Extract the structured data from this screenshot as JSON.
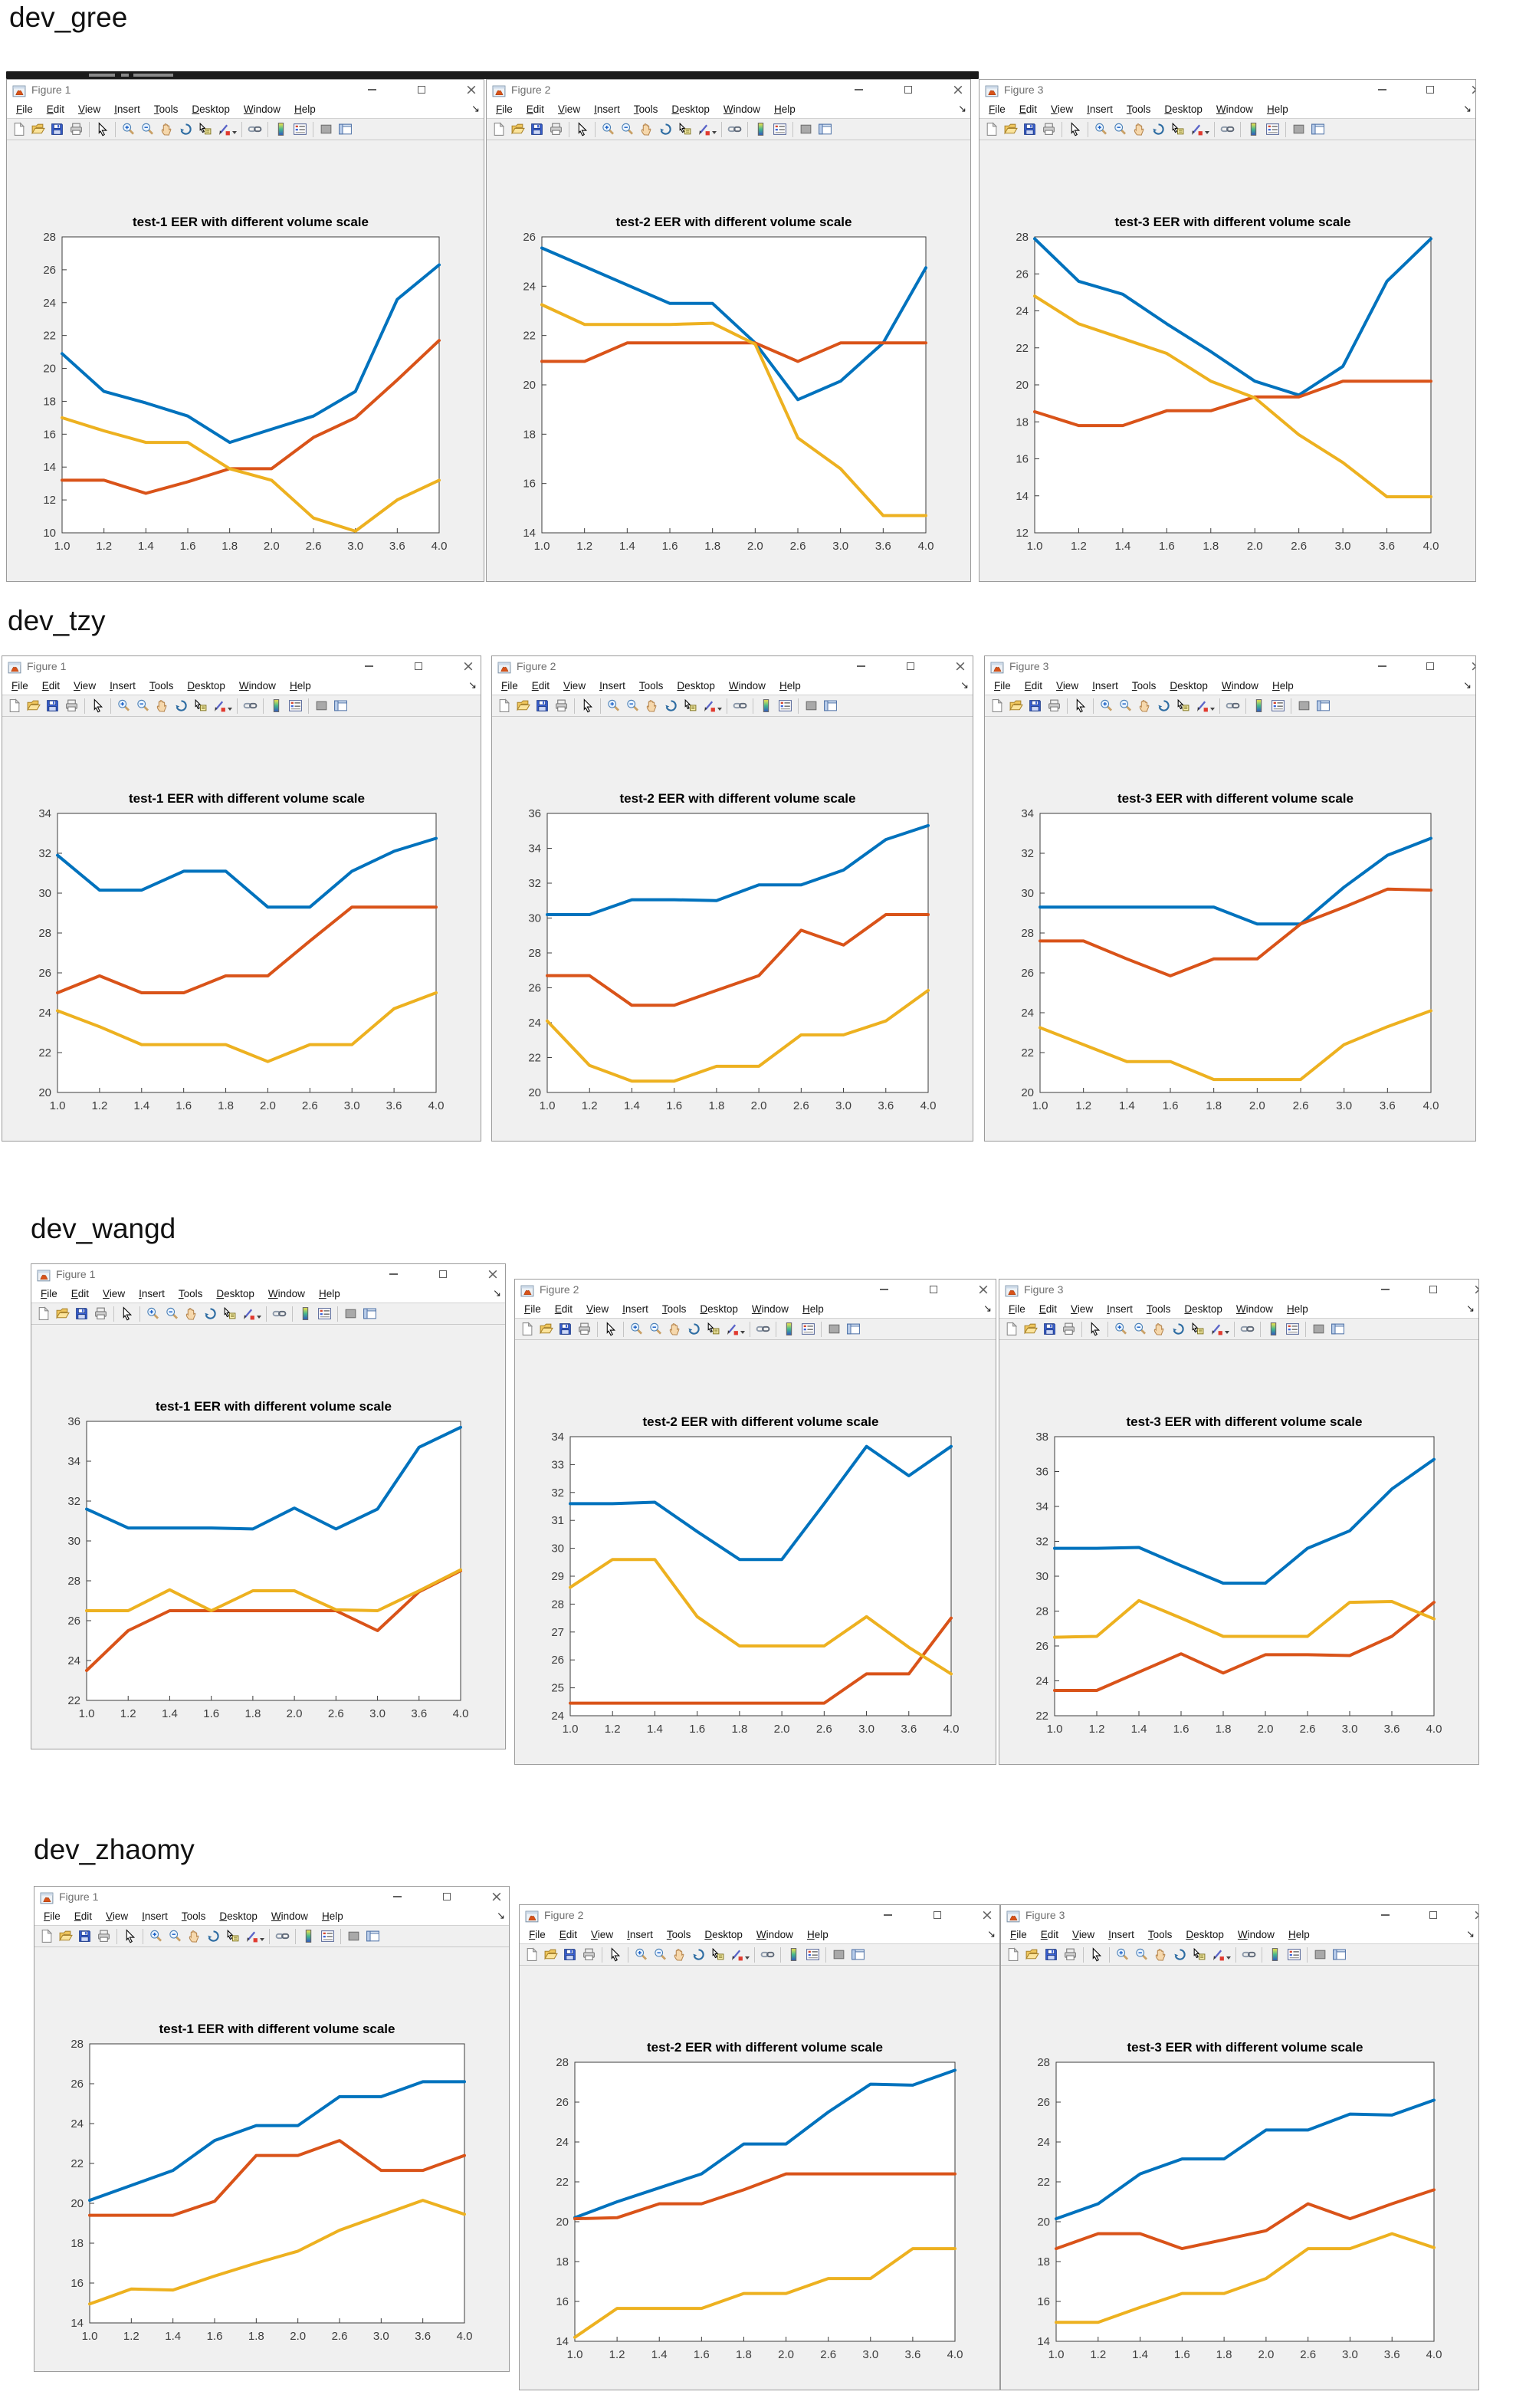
{
  "menu": [
    "File",
    "Edit",
    "View",
    "Insert",
    "Tools",
    "Desktop",
    "Window",
    "Help"
  ],
  "window_controls": {
    "minimize": "minimize",
    "maximize": "maximize",
    "close": "close"
  },
  "toolbar_icon_names": [
    "new-document",
    "open-file",
    "save",
    "print",
    "cursor",
    "zoom-in",
    "zoom-out",
    "pan-hand",
    "rotate-3d",
    "data-cursor",
    "brush",
    "link-plots",
    "insert-colorbar",
    "insert-legend",
    "hide-plot-tools",
    "show-plot-tools"
  ],
  "colors": {
    "blue": "#0072BD",
    "orange": "#D95319",
    "yellow": "#EDB120",
    "figure_bg": "#F0F0F0",
    "titlebar_bg": "#FFFFFF",
    "axis": "#3C3C3C",
    "title_text": "#6F6F6F"
  },
  "sections": [
    {
      "label": "dev_gree",
      "windows": [
        {
          "title": "Figure 1",
          "chart_index": 0
        },
        {
          "title": "Figure 2",
          "chart_index": 1
        },
        {
          "title": "Figure 3",
          "chart_index": 2
        }
      ]
    },
    {
      "label": "dev_tzy",
      "windows": [
        {
          "title": "Figure 1",
          "chart_index": 3
        },
        {
          "title": "Figure 2",
          "chart_index": 4
        },
        {
          "title": "Figure 3",
          "chart_index": 5
        }
      ]
    },
    {
      "label": "dev_wangd",
      "windows": [
        {
          "title": "Figure 1",
          "chart_index": 6
        },
        {
          "title": "Figure 2",
          "chart_index": 7
        },
        {
          "title": "Figure 3",
          "chart_index": 8
        }
      ]
    },
    {
      "label": "dev_zhaomy",
      "windows": [
        {
          "title": "Figure 1",
          "chart_index": 9
        },
        {
          "title": "Figure 2",
          "chart_index": 10
        },
        {
          "title": "Figure 3",
          "chart_index": 11
        }
      ]
    }
  ],
  "chart_data": [
    {
      "type": "line",
      "section": "dev_gree",
      "title": "test-1 EER with different volume scale",
      "x_ticks": [
        "1.0",
        "1.2",
        "1.4",
        "1.6",
        "1.8",
        "2.0",
        "2.6",
        "3.0",
        "3.6",
        "4.0"
      ],
      "ylim": [
        10,
        28
      ],
      "y_ticks": [
        "10",
        "12",
        "14",
        "16",
        "18",
        "20",
        "22",
        "24",
        "26",
        "28"
      ],
      "series": [
        {
          "name": "blue",
          "values": [
            20.9,
            18.6,
            17.9,
            17.1,
            15.5,
            16.3,
            17.1,
            18.6,
            24.2,
            26.3
          ]
        },
        {
          "name": "orange",
          "values": [
            13.2,
            13.2,
            12.4,
            13.1,
            13.9,
            13.9,
            15.8,
            17.0,
            19.3,
            21.7
          ]
        },
        {
          "name": "yellow",
          "values": [
            17.0,
            16.2,
            15.5,
            15.5,
            13.9,
            13.2,
            10.9,
            10.1,
            12.0,
            13.2
          ]
        }
      ]
    },
    {
      "type": "line",
      "section": "dev_gree",
      "title": "test-2 EER with different volume scale",
      "x_ticks": [
        "1.0",
        "1.2",
        "1.4",
        "1.6",
        "1.8",
        "2.0",
        "2.6",
        "3.0",
        "3.6",
        "4.0"
      ],
      "ylim": [
        14,
        26
      ],
      "y_ticks": [
        "14",
        "16",
        "18",
        "20",
        "22",
        "24",
        "26"
      ],
      "series": [
        {
          "name": "blue",
          "values": [
            25.55,
            24.8,
            24.05,
            23.3,
            23.3,
            21.7,
            19.4,
            20.15,
            21.7,
            24.75
          ]
        },
        {
          "name": "orange",
          "values": [
            20.95,
            20.95,
            21.7,
            21.7,
            21.7,
            21.7,
            20.95,
            21.7,
            21.7,
            21.7
          ]
        },
        {
          "name": "yellow",
          "values": [
            23.25,
            22.45,
            22.45,
            22.45,
            22.5,
            21.65,
            17.85,
            16.6,
            14.7,
            14.7
          ]
        }
      ]
    },
    {
      "type": "line",
      "section": "dev_gree",
      "title": "test-3 EER with different volume scale",
      "x_ticks": [
        "1.0",
        "1.2",
        "1.4",
        "1.6",
        "1.8",
        "2.0",
        "2.6",
        "3.0",
        "3.6",
        "4.0"
      ],
      "ylim": [
        12,
        28
      ],
      "y_ticks": [
        "12",
        "14",
        "16",
        "18",
        "20",
        "22",
        "24",
        "26",
        "28"
      ],
      "series": [
        {
          "name": "blue",
          "values": [
            27.9,
            25.6,
            24.9,
            23.3,
            21.8,
            20.2,
            19.45,
            21.0,
            25.6,
            27.9
          ]
        },
        {
          "name": "orange",
          "values": [
            18.55,
            17.8,
            17.8,
            18.6,
            18.6,
            19.35,
            19.35,
            20.2,
            20.2,
            20.2
          ]
        },
        {
          "name": "yellow",
          "values": [
            24.8,
            23.3,
            22.5,
            21.7,
            20.2,
            19.3,
            17.3,
            15.8,
            13.95,
            13.95
          ]
        }
      ]
    },
    {
      "type": "line",
      "section": "dev_tzy",
      "title": "test-1 EER with different volume scale",
      "x_ticks": [
        "1.0",
        "1.2",
        "1.4",
        "1.6",
        "1.8",
        "2.0",
        "2.6",
        "3.0",
        "3.6",
        "4.0"
      ],
      "ylim": [
        20,
        34
      ],
      "y_ticks": [
        "20",
        "22",
        "24",
        "26",
        "28",
        "30",
        "32",
        "34"
      ],
      "series": [
        {
          "name": "blue",
          "values": [
            31.9,
            30.15,
            30.15,
            31.1,
            31.1,
            29.3,
            29.3,
            31.1,
            32.1,
            32.75
          ]
        },
        {
          "name": "orange",
          "values": [
            25.0,
            25.85,
            25.0,
            25.0,
            25.85,
            25.85,
            27.6,
            29.3,
            29.3,
            29.3
          ]
        },
        {
          "name": "yellow",
          "values": [
            24.1,
            23.3,
            22.4,
            22.4,
            22.4,
            21.55,
            22.4,
            22.4,
            24.2,
            25.0
          ]
        }
      ]
    },
    {
      "type": "line",
      "section": "dev_tzy",
      "title": "test-2 EER with different volume scale",
      "x_ticks": [
        "1.0",
        "1.2",
        "1.4",
        "1.6",
        "1.8",
        "2.0",
        "2.6",
        "3.0",
        "3.6",
        "4.0"
      ],
      "ylim": [
        20,
        36
      ],
      "y_ticks": [
        "20",
        "22",
        "24",
        "26",
        "28",
        "30",
        "32",
        "34",
        "36"
      ],
      "series": [
        {
          "name": "blue",
          "values": [
            30.2,
            30.2,
            31.05,
            31.05,
            31.0,
            31.9,
            31.9,
            32.75,
            34.5,
            35.3
          ]
        },
        {
          "name": "orange",
          "values": [
            26.7,
            26.7,
            25.0,
            25.0,
            25.85,
            26.7,
            29.3,
            28.45,
            30.2,
            30.2
          ]
        },
        {
          "name": "yellow",
          "values": [
            24.1,
            21.55,
            20.65,
            20.65,
            21.5,
            21.5,
            23.3,
            23.3,
            24.1,
            25.85
          ]
        }
      ]
    },
    {
      "type": "line",
      "section": "dev_tzy",
      "title": "test-3 EER with different volume scale",
      "x_ticks": [
        "1.0",
        "1.2",
        "1.4",
        "1.6",
        "1.8",
        "2.0",
        "2.6",
        "3.0",
        "3.6",
        "4.0"
      ],
      "ylim": [
        20,
        34
      ],
      "y_ticks": [
        "20",
        "22",
        "24",
        "26",
        "28",
        "30",
        "32",
        "34"
      ],
      "series": [
        {
          "name": "blue",
          "values": [
            29.3,
            29.3,
            29.3,
            29.3,
            29.3,
            28.45,
            28.45,
            30.3,
            31.9,
            32.75
          ]
        },
        {
          "name": "orange",
          "values": [
            27.6,
            27.6,
            26.7,
            25.85,
            26.7,
            26.7,
            28.45,
            29.3,
            30.2,
            30.15
          ]
        },
        {
          "name": "yellow",
          "values": [
            23.25,
            22.4,
            21.55,
            21.55,
            20.65,
            20.65,
            20.65,
            22.4,
            23.3,
            24.1
          ]
        }
      ]
    },
    {
      "type": "line",
      "section": "dev_wangd",
      "title": "test-1 EER with different volume scale",
      "x_ticks": [
        "1.0",
        "1.2",
        "1.4",
        "1.6",
        "1.8",
        "2.0",
        "2.6",
        "3.0",
        "3.6",
        "4.0"
      ],
      "ylim": [
        22,
        36
      ],
      "y_ticks": [
        "22",
        "24",
        "26",
        "28",
        "30",
        "32",
        "34",
        "36"
      ],
      "series": [
        {
          "name": "blue",
          "values": [
            31.6,
            30.65,
            30.65,
            30.65,
            30.6,
            31.65,
            30.6,
            31.6,
            34.7,
            35.7
          ]
        },
        {
          "name": "orange",
          "values": [
            23.5,
            25.5,
            26.5,
            26.5,
            26.5,
            26.5,
            26.5,
            25.5,
            27.45,
            28.5
          ]
        },
        {
          "name": "yellow",
          "values": [
            26.5,
            26.5,
            27.55,
            26.5,
            27.5,
            27.5,
            26.55,
            26.5,
            27.5,
            28.55
          ]
        }
      ]
    },
    {
      "type": "line",
      "section": "dev_wangd",
      "title": "test-2 EER with different volume scale",
      "x_ticks": [
        "1.0",
        "1.2",
        "1.4",
        "1.6",
        "1.8",
        "2.0",
        "2.6",
        "3.0",
        "3.6",
        "4.0"
      ],
      "ylim": [
        24,
        34
      ],
      "y_ticks": [
        "24",
        "25",
        "26",
        "27",
        "28",
        "29",
        "30",
        "31",
        "32",
        "33",
        "34"
      ],
      "series": [
        {
          "name": "blue",
          "values": [
            31.6,
            31.6,
            31.65,
            30.6,
            29.6,
            29.6,
            31.6,
            33.65,
            32.6,
            33.65
          ]
        },
        {
          "name": "orange",
          "values": [
            24.45,
            24.45,
            24.45,
            24.45,
            24.45,
            24.45,
            24.45,
            25.5,
            25.5,
            27.5
          ]
        },
        {
          "name": "yellow",
          "values": [
            28.6,
            29.6,
            29.6,
            27.55,
            26.5,
            26.5,
            26.5,
            27.55,
            26.45,
            25.5
          ]
        }
      ]
    },
    {
      "type": "line",
      "section": "dev_wangd",
      "title": "test-3 EER with different volume scale",
      "x_ticks": [
        "1.0",
        "1.2",
        "1.4",
        "1.6",
        "1.8",
        "2.0",
        "2.6",
        "3.0",
        "3.6",
        "4.0"
      ],
      "ylim": [
        22,
        38
      ],
      "y_ticks": [
        "22",
        "24",
        "26",
        "28",
        "30",
        "32",
        "34",
        "36",
        "38"
      ],
      "series": [
        {
          "name": "blue",
          "values": [
            31.6,
            31.6,
            31.65,
            30.6,
            29.6,
            29.6,
            31.6,
            32.6,
            35.0,
            36.7
          ]
        },
        {
          "name": "orange",
          "values": [
            23.45,
            23.45,
            24.5,
            25.55,
            24.45,
            25.5,
            25.5,
            25.45,
            26.55,
            28.5
          ]
        },
        {
          "name": "yellow",
          "values": [
            26.5,
            26.55,
            28.6,
            27.6,
            26.55,
            26.55,
            26.55,
            28.5,
            28.55,
            27.55
          ]
        }
      ]
    },
    {
      "type": "line",
      "section": "dev_zhaomy",
      "title": "test-1 EER with different volume scale",
      "x_ticks": [
        "1.0",
        "1.2",
        "1.4",
        "1.6",
        "1.8",
        "2.0",
        "2.6",
        "3.0",
        "3.6",
        "4.0"
      ],
      "ylim": [
        14,
        28
      ],
      "y_ticks": [
        "14",
        "16",
        "18",
        "20",
        "22",
        "24",
        "26",
        "28"
      ],
      "series": [
        {
          "name": "blue",
          "values": [
            20.15,
            20.9,
            21.65,
            23.15,
            23.9,
            23.9,
            25.35,
            25.35,
            26.1,
            26.1
          ]
        },
        {
          "name": "orange",
          "values": [
            19.4,
            19.4,
            19.4,
            20.1,
            22.4,
            22.4,
            23.15,
            21.65,
            21.65,
            22.4
          ]
        },
        {
          "name": "yellow",
          "values": [
            14.95,
            15.7,
            15.65,
            16.35,
            17.0,
            17.6,
            18.65,
            19.4,
            20.15,
            19.45
          ]
        }
      ]
    },
    {
      "type": "line",
      "section": "dev_zhaomy",
      "title": "test-2 EER with different volume scale",
      "x_ticks": [
        "1.0",
        "1.2",
        "1.4",
        "1.6",
        "1.8",
        "2.0",
        "2.6",
        "3.0",
        "3.6",
        "4.0"
      ],
      "ylim": [
        14,
        28
      ],
      "y_ticks": [
        "14",
        "16",
        "18",
        "20",
        "22",
        "24",
        "26",
        "28"
      ],
      "series": [
        {
          "name": "blue",
          "values": [
            20.2,
            21.0,
            21.7,
            22.4,
            23.9,
            23.9,
            25.5,
            26.9,
            26.85,
            27.6
          ]
        },
        {
          "name": "orange",
          "values": [
            20.15,
            20.2,
            20.9,
            20.9,
            21.6,
            22.4,
            22.4,
            22.4,
            22.4,
            22.4
          ]
        },
        {
          "name": "yellow",
          "values": [
            14.2,
            15.65,
            15.65,
            15.65,
            16.4,
            16.4,
            17.15,
            17.15,
            18.65,
            18.65
          ]
        }
      ]
    },
    {
      "type": "line",
      "section": "dev_zhaomy",
      "title": "test-3 EER with different volume scale",
      "x_ticks": [
        "1.0",
        "1.2",
        "1.4",
        "1.6",
        "1.8",
        "2.0",
        "2.6",
        "3.0",
        "3.6",
        "4.0"
      ],
      "ylim": [
        14,
        28
      ],
      "y_ticks": [
        "14",
        "16",
        "18",
        "20",
        "22",
        "24",
        "26",
        "28"
      ],
      "series": [
        {
          "name": "blue",
          "values": [
            20.15,
            20.9,
            22.4,
            23.15,
            23.15,
            24.6,
            24.6,
            25.4,
            25.35,
            26.1
          ]
        },
        {
          "name": "orange",
          "values": [
            18.65,
            19.4,
            19.4,
            18.65,
            19.1,
            19.55,
            20.9,
            20.15,
            20.9,
            21.6
          ]
        },
        {
          "name": "yellow",
          "values": [
            14.95,
            14.95,
            15.7,
            16.4,
            16.4,
            17.15,
            18.65,
            18.65,
            19.4,
            18.7
          ]
        }
      ]
    }
  ]
}
